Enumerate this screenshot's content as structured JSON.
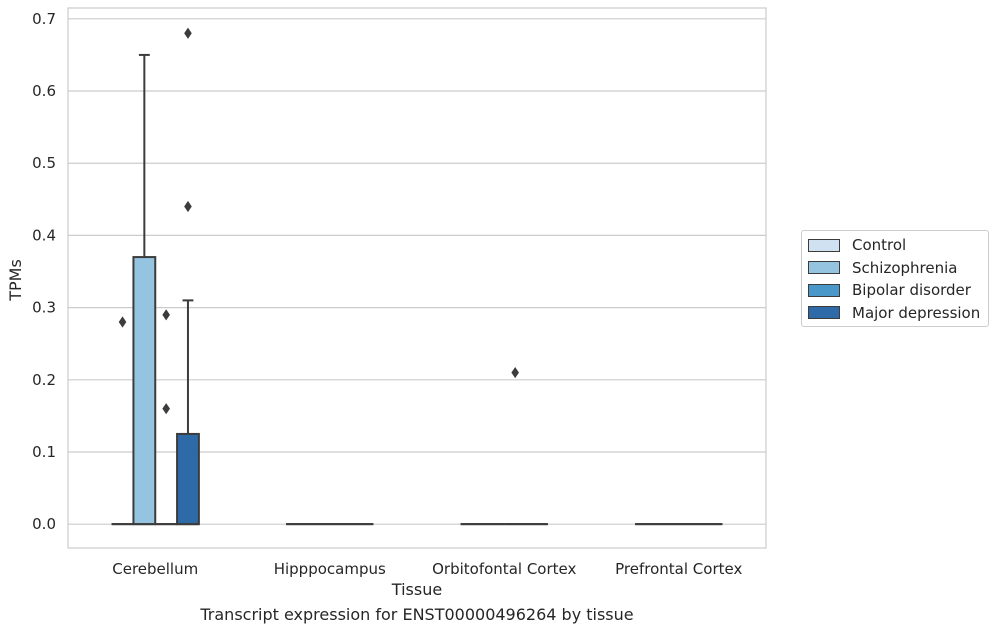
{
  "chart_data": {
    "type": "box",
    "title": "",
    "caption": "Transcript expression for ENST00000496264 by tissue",
    "xlabel": "Tissue",
    "ylabel": "TPMs",
    "ylim": [
      -0.033,
      0.715
    ],
    "yticks": [
      0.0,
      0.1,
      0.2,
      0.3,
      0.4,
      0.5,
      0.6,
      0.7
    ],
    "ytick_labels": [
      "0.0",
      "0.1",
      "0.2",
      "0.3",
      "0.4",
      "0.5",
      "0.6",
      "0.7"
    ],
    "categories": [
      "Cerebellum",
      "Hipppocampus",
      "Orbitofontal Cortex",
      "Prefrontal Cortex"
    ],
    "grid": true,
    "legend_position": "right",
    "series": [
      {
        "name": "Control",
        "color": "#d0e1f2",
        "boxes": [
          {
            "q1": 0,
            "median": 0,
            "q3": 0,
            "whisker_low": 0,
            "whisker_high": 0,
            "outliers": [
              0.28
            ]
          },
          {
            "q1": 0,
            "median": 0,
            "q3": 0,
            "whisker_low": 0,
            "whisker_high": 0,
            "outliers": []
          },
          {
            "q1": 0,
            "median": 0,
            "q3": 0,
            "whisker_low": 0,
            "whisker_high": 0,
            "outliers": []
          },
          {
            "q1": 0,
            "median": 0,
            "q3": 0,
            "whisker_low": 0,
            "whisker_high": 0,
            "outliers": []
          }
        ]
      },
      {
        "name": "Schizophrenia",
        "color": "#94c4df",
        "boxes": [
          {
            "q1": 0,
            "median": 0,
            "q3": 0.37,
            "whisker_low": 0,
            "whisker_high": 0.65,
            "outliers": []
          },
          {
            "q1": 0,
            "median": 0,
            "q3": 0,
            "whisker_low": 0,
            "whisker_high": 0,
            "outliers": []
          },
          {
            "q1": 0,
            "median": 0,
            "q3": 0,
            "whisker_low": 0,
            "whisker_high": 0,
            "outliers": []
          },
          {
            "q1": 0,
            "median": 0,
            "q3": 0,
            "whisker_low": 0,
            "whisker_high": 0,
            "outliers": []
          }
        ]
      },
      {
        "name": "Bipolar disorder",
        "color": "#4a98c9",
        "boxes": [
          {
            "q1": 0,
            "median": 0,
            "q3": 0,
            "whisker_low": 0,
            "whisker_high": 0,
            "outliers": [
              0.29,
              0.16
            ]
          },
          {
            "q1": 0,
            "median": 0,
            "q3": 0,
            "whisker_low": 0,
            "whisker_high": 0,
            "outliers": []
          },
          {
            "q1": 0,
            "median": 0,
            "q3": 0,
            "whisker_low": 0,
            "whisker_high": 0,
            "outliers": [
              0.21
            ]
          },
          {
            "q1": 0,
            "median": 0,
            "q3": 0,
            "whisker_low": 0,
            "whisker_high": 0,
            "outliers": []
          }
        ]
      },
      {
        "name": "Major depression",
        "color": "#2e69a8",
        "boxes": [
          {
            "q1": 0,
            "median": 0,
            "q3": 0.125,
            "whisker_low": 0,
            "whisker_high": 0.31,
            "outliers": [
              0.68,
              0.44
            ]
          },
          {
            "q1": 0,
            "median": 0,
            "q3": 0,
            "whisker_low": 0,
            "whisker_high": 0,
            "outliers": []
          },
          {
            "q1": 0,
            "median": 0,
            "q3": 0,
            "whisker_low": 0,
            "whisker_high": 0,
            "outliers": []
          },
          {
            "q1": 0,
            "median": 0,
            "q3": 0,
            "whisker_low": 0,
            "whisker_high": 0,
            "outliers": []
          }
        ]
      }
    ]
  }
}
